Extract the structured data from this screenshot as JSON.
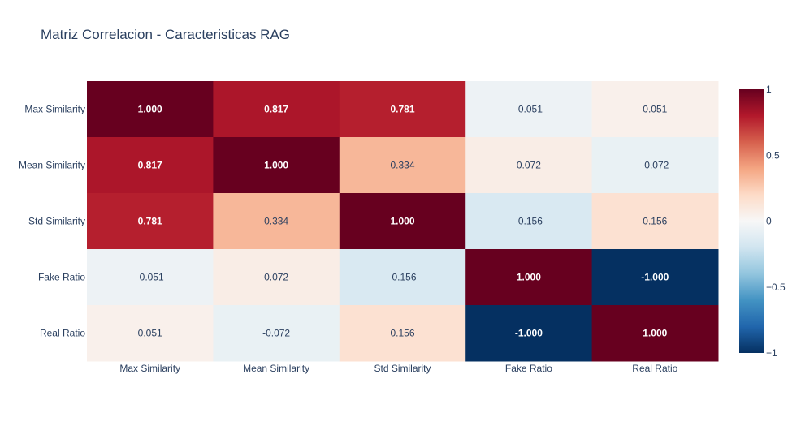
{
  "chart_data": {
    "type": "heatmap",
    "title": "Matriz Correlacion - Caracteristicas RAG",
    "x": [
      "Max Similarity",
      "Mean Similarity",
      "Std Similarity",
      "Fake Ratio",
      "Real Ratio"
    ],
    "y": [
      "Max Similarity",
      "Mean Similarity",
      "Std Similarity",
      "Fake Ratio",
      "Real Ratio"
    ],
    "z": [
      [
        1.0,
        0.817,
        0.781,
        -0.051,
        0.051
      ],
      [
        0.817,
        1.0,
        0.334,
        0.072,
        -0.072
      ],
      [
        0.781,
        0.334,
        1.0,
        -0.156,
        0.156
      ],
      [
        -0.051,
        0.072,
        -0.156,
        1.0,
        -1.0
      ],
      [
        0.051,
        -0.072,
        0.156,
        -1.0,
        1.0
      ]
    ],
    "text": [
      [
        "1.000",
        "0.817",
        "0.781",
        "-0.051",
        "0.051"
      ],
      [
        "0.817",
        "1.000",
        "0.334",
        "0.072",
        "-0.072"
      ],
      [
        "0.781",
        "0.334",
        "1.000",
        "-0.156",
        "0.156"
      ],
      [
        "-0.051",
        "0.072",
        "-0.156",
        "1.000",
        "-1.000"
      ],
      [
        "0.051",
        "-0.072",
        "0.156",
        "-1.000",
        "1.000"
      ]
    ],
    "zrange": [
      -1,
      1
    ],
    "colorscale": "RdBu_r",
    "colorbar": {
      "tickvals": [
        1,
        0.5,
        0,
        -0.5,
        -1
      ],
      "ticktext": [
        "1",
        "0.5",
        "0",
        "−0.5",
        "−1"
      ]
    },
    "legend": "right"
  },
  "colors": {
    "text": "#2a3f5f",
    "scale_stops": [
      "#053061",
      "#2166ac",
      "#4393c3",
      "#92c5de",
      "#d1e5f0",
      "#f7f7f7",
      "#fddbc7",
      "#f4a582",
      "#d6604d",
      "#b2182b",
      "#67001f"
    ]
  }
}
